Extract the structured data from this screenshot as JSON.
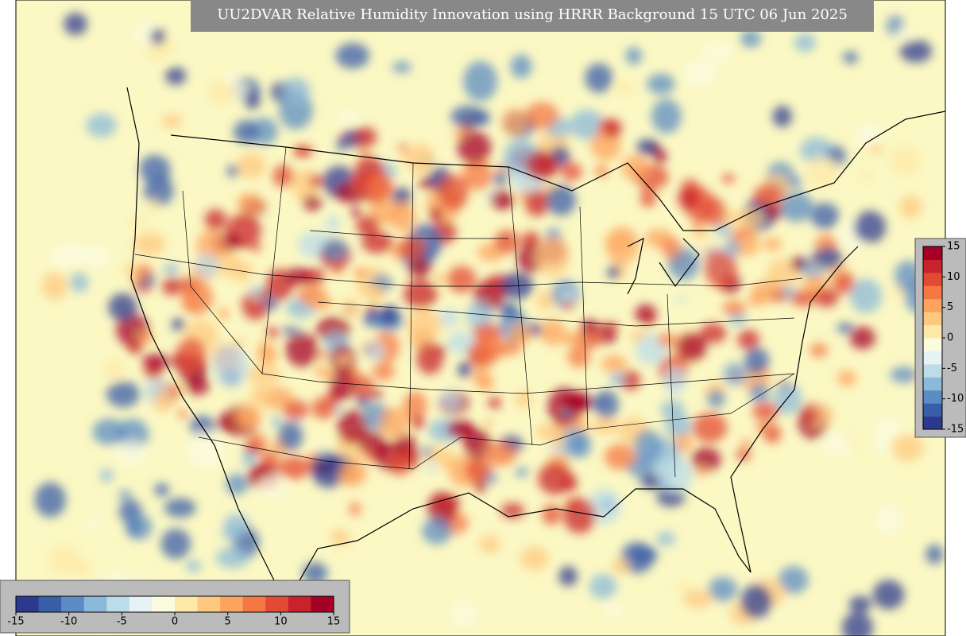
{
  "title": "UU2DVAR Relative Humidity Innovation using HRRR Background 15 UTC 06 Jun 2025",
  "colormap": [
    "#2b3a8f",
    "#3a5da8",
    "#5b8cc3",
    "#8bb9d9",
    "#bcdcea",
    "#e6f2f3",
    "#fbfbe0",
    "#fee9a8",
    "#fdc980",
    "#fca35e",
    "#f57844",
    "#e34a33",
    "#c8232a",
    "#a50026"
  ],
  "colorbars": [
    {
      "orientation": "horizontal",
      "lim": [
        -15,
        15
      ],
      "ticks": [
        -15,
        -10,
        -5,
        0,
        5,
        10,
        15
      ]
    },
    {
      "orientation": "vertical",
      "lim": [
        -15,
        15
      ],
      "ticks": [
        -15,
        -10,
        -5,
        0,
        5,
        10,
        15
      ]
    }
  ]
}
